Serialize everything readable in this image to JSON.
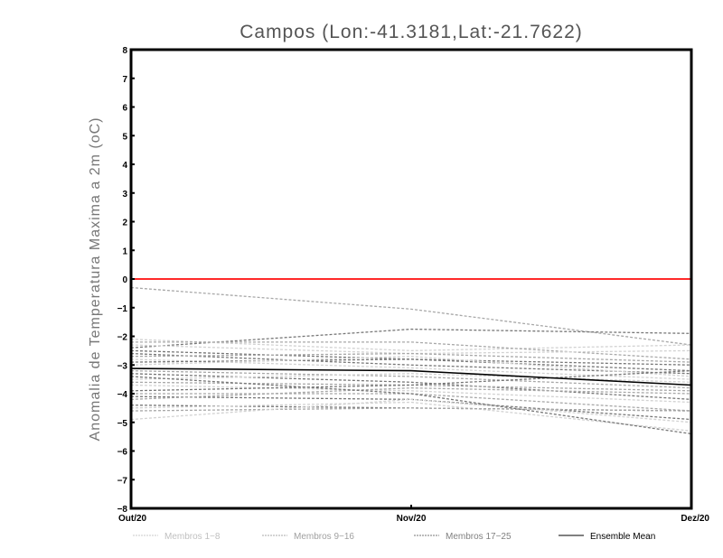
{
  "chart_data": {
    "type": "line",
    "title": "Campos (Lon:-41.3181,Lat:-21.7622)",
    "xlabel": "",
    "ylabel": "Anomalia de Temperatura Maxima a 2m (oC)",
    "categories": [
      "Out/20",
      "Nov/20",
      "Dez/20"
    ],
    "ylim": [
      -8,
      8
    ],
    "yticks": [
      "8",
      "7",
      "6",
      "5",
      "4",
      "3",
      "2",
      "1",
      "0",
      "-1",
      "-2",
      "-3",
      "-4",
      "-5",
      "-6",
      "-7",
      "-8"
    ],
    "reference_line": {
      "value": 0,
      "color": "#ff2a2a"
    },
    "legend_position": "bottom",
    "groups": [
      {
        "name": "Membros 1-8",
        "color": "#d2d2d2",
        "dashed": true
      },
      {
        "name": "Membros 9-16",
        "color": "#a8a8a8",
        "dashed": true
      },
      {
        "name": "Membros 17-25",
        "color": "#777777",
        "dashed": true
      },
      {
        "name": "Ensemble Mean",
        "color": "#000000",
        "dashed": false
      }
    ],
    "series": [
      {
        "group": 1,
        "values": [
          -0.3,
          -1.05,
          -2.3
        ]
      },
      {
        "group": 2,
        "values": [
          -2.4,
          -1.75,
          -1.9
        ]
      },
      {
        "group": 0,
        "values": [
          -2.1,
          -2.5,
          -2.3
        ]
      },
      {
        "group": 1,
        "values": [
          -2.2,
          -2.2,
          -2.8
        ]
      },
      {
        "group": 0,
        "values": [
          -2.3,
          -2.6,
          -2.5
        ]
      },
      {
        "group": 2,
        "values": [
          -2.5,
          -2.8,
          -3.0
        ]
      },
      {
        "group": 2,
        "values": [
          -2.6,
          -3.0,
          -3.3
        ]
      },
      {
        "group": 1,
        "values": [
          -2.7,
          -2.6,
          -2.9
        ]
      },
      {
        "group": 0,
        "values": [
          -2.8,
          -3.1,
          -3.5
        ]
      },
      {
        "group": 2,
        "values": [
          -2.9,
          -2.8,
          -3.2
        ]
      },
      {
        "group": 0,
        "values": [
          -3.0,
          -2.7,
          -3.4
        ]
      },
      {
        "group": 1,
        "values": [
          -3.2,
          -3.4,
          -3.8
        ]
      },
      {
        "group": 2,
        "values": [
          -3.3,
          -3.6,
          -4.2
        ]
      },
      {
        "group": 0,
        "values": [
          -3.5,
          -3.3,
          -3.6
        ]
      },
      {
        "group": 1,
        "values": [
          -3.6,
          -3.7,
          -3.9
        ]
      },
      {
        "group": 0,
        "values": [
          -3.7,
          -3.9,
          -4.3
        ]
      },
      {
        "group": 2,
        "values": [
          -3.9,
          -3.7,
          -3.2
        ]
      },
      {
        "group": 1,
        "values": [
          -4.0,
          -4.0,
          -4.6
        ]
      },
      {
        "group": 2,
        "values": [
          -4.1,
          -4.2,
          -4.9
        ]
      },
      {
        "group": 1,
        "values": [
          -4.2,
          -3.8,
          -4.0
        ]
      },
      {
        "group": 2,
        "values": [
          -4.4,
          -4.5,
          -4.6
        ]
      },
      {
        "group": 0,
        "values": [
          -4.5,
          -4.3,
          -5.3
        ]
      },
      {
        "group": 1,
        "values": [
          -4.6,
          -4.5,
          -4.6
        ]
      },
      {
        "group": 0,
        "values": [
          -4.9,
          -4.2,
          -5.0
        ]
      },
      {
        "group": 2,
        "values": [
          -3.4,
          -4.0,
          -5.4
        ]
      }
    ],
    "ensemble_mean": [
      -3.12,
      -3.2,
      -3.7
    ]
  }
}
